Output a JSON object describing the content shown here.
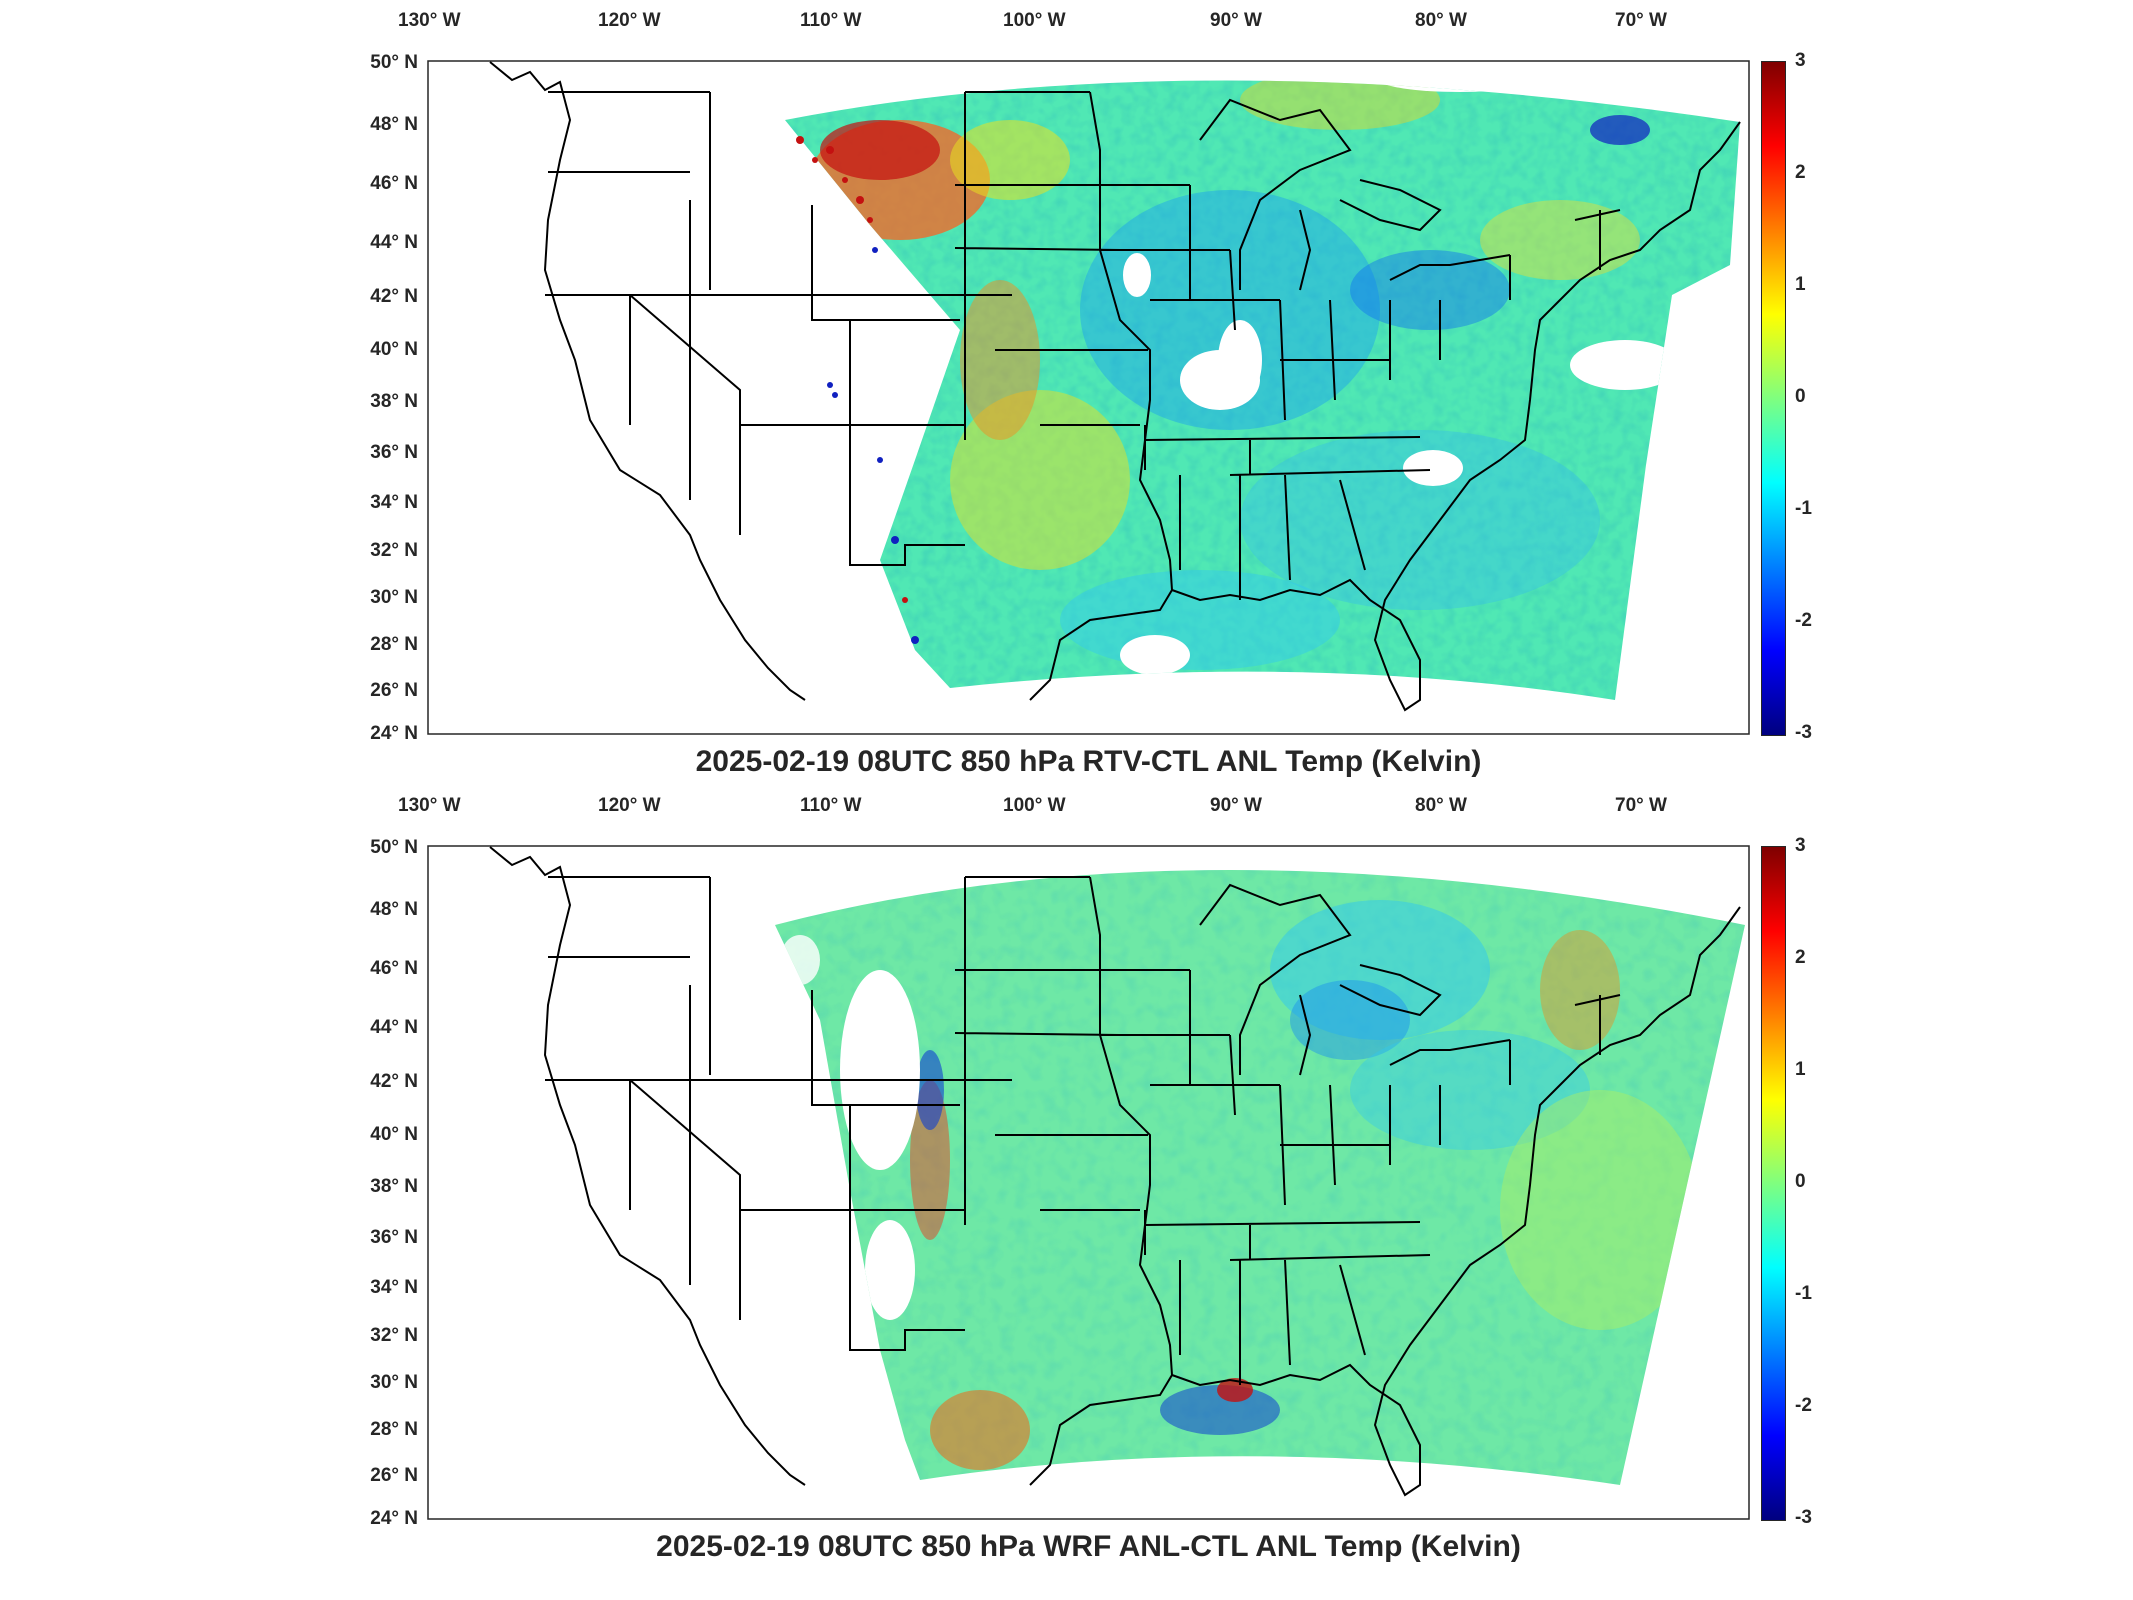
{
  "map": {
    "longitude_labels": [
      "130° W",
      "120° W",
      "110° W",
      "100° W",
      "90° W",
      "80° W",
      "70° W"
    ],
    "latitude_labels": [
      "50° N",
      "48° N",
      "46° N",
      "44° N",
      "42° N",
      "40° N",
      "38° N",
      "36° N",
      "34° N",
      "32° N",
      "30° N",
      "28° N",
      "26° N",
      "24° N"
    ],
    "extent": {
      "lon_min": -131,
      "lon_max": -66,
      "lat_min": 24,
      "lat_max": 50
    },
    "colormap": "jet",
    "colorbar_ticks": [
      "3",
      "2",
      "1",
      "0",
      "-1",
      "-2",
      "-3"
    ],
    "colorbar_range": [
      -3,
      3
    ]
  },
  "panels": [
    {
      "title": "2025-02-19 08UTC 850 hPa RTV-CTL ANL Temp (Kelvin)",
      "field_variable": "RTV-CTL",
      "units": "Kelvin"
    },
    {
      "title": "2025-02-19 08UTC 850 hPa WRF ANL-CTL ANL Temp (Kelvin)",
      "field_variable": "WRF ANL-CTL",
      "units": "Kelvin"
    }
  ]
}
